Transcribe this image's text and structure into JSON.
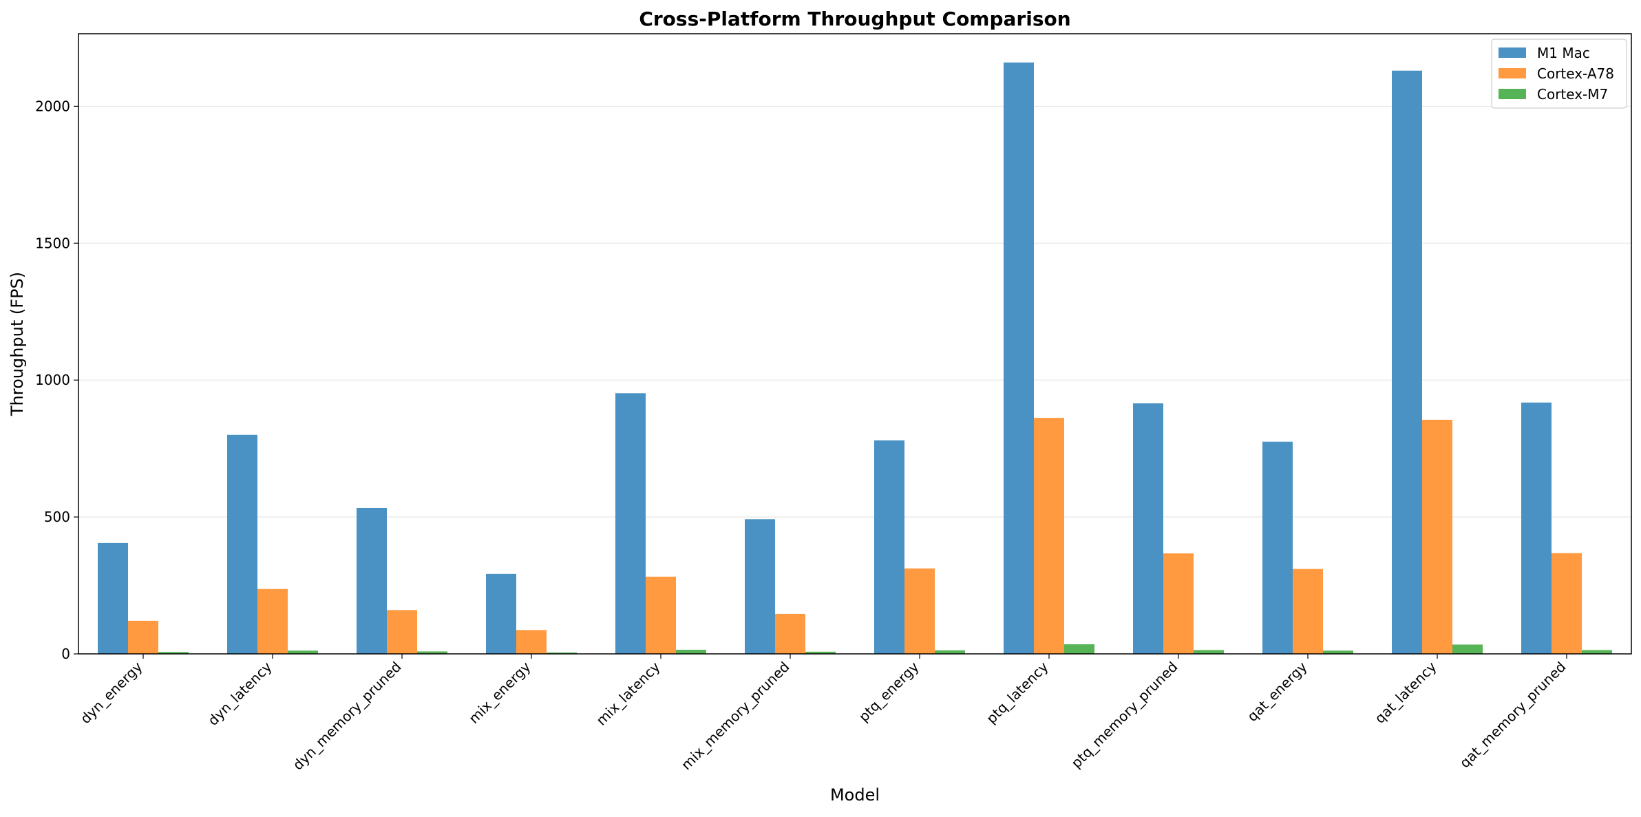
{
  "chart_data": {
    "type": "bar",
    "title": "Cross-Platform Throughput Comparison",
    "xlabel": "Model",
    "ylabel": "Throughput (FPS)",
    "categories": [
      "dyn_energy",
      "dyn_latency",
      "dyn_memory_pruned",
      "mix_energy",
      "mix_latency",
      "mix_memory_pruned",
      "ptq_energy",
      "ptq_latency",
      "ptq_memory_pruned",
      "qat_energy",
      "qat_latency",
      "qat_memory_pruned"
    ],
    "series": [
      {
        "name": "M1 Mac",
        "color": "#4a92c4",
        "values": [
          405,
          800,
          533,
          292,
          952,
          492,
          780,
          2160,
          915,
          775,
          2130,
          918
        ]
      },
      {
        "name": "Cortex-A78",
        "color": "#ff9a40",
        "values": [
          121,
          237,
          160,
          87,
          282,
          146,
          312,
          862,
          367,
          310,
          855,
          368
        ]
      },
      {
        "name": "Cortex-M7",
        "color": "#56b356",
        "values": [
          7,
          12,
          9,
          5,
          15,
          8,
          13,
          35,
          14,
          12,
          34,
          14
        ]
      }
    ],
    "ylim": [
      0,
      2265
    ],
    "yticks": [
      0,
      500,
      1000,
      1500,
      2000
    ],
    "grid": "y",
    "legend_position": "top-right"
  }
}
